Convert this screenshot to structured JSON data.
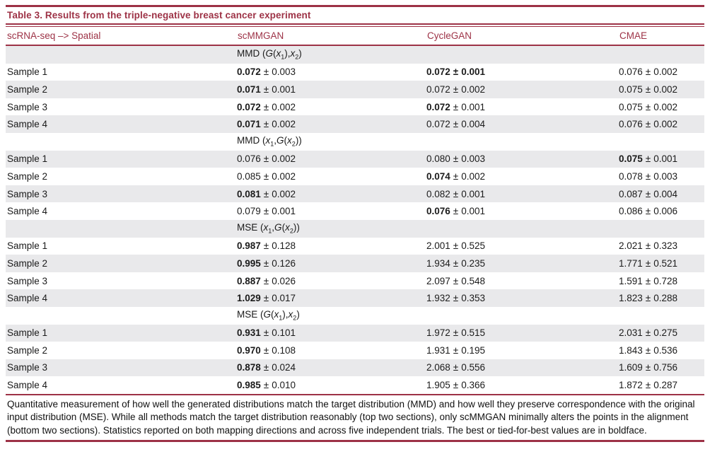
{
  "title": "Table 3. Results from the triple-negative breast cancer experiment",
  "pm": "±",
  "columns": {
    "label": "scRNA-seq –> Spatial",
    "scmmgan": "scMMGAN",
    "cyclegan": "CycleGAN",
    "cmae": "CMAE"
  },
  "sections": [
    {
      "metric": "MMD (G(x_1),x_2)",
      "rows": [
        {
          "label": "Sample 1",
          "scmmgan": {
            "value": "0.072",
            "err": "0.003",
            "bold": "value"
          },
          "cyclegan": {
            "value": "0.072",
            "err": "0.001",
            "bold": "all"
          },
          "cmae": {
            "value": "0.076",
            "err": "0.002",
            "bold": "none"
          }
        },
        {
          "label": "Sample 2",
          "scmmgan": {
            "value": "0.071",
            "err": "0.001",
            "bold": "value"
          },
          "cyclegan": {
            "value": "0.072",
            "err": "0.002",
            "bold": "none"
          },
          "cmae": {
            "value": "0.075",
            "err": "0.002",
            "bold": "none"
          }
        },
        {
          "label": "Sample 3",
          "scmmgan": {
            "value": "0.072",
            "err": "0.002",
            "bold": "value"
          },
          "cyclegan": {
            "value": "0.072",
            "err": "0.001",
            "bold": "value"
          },
          "cmae": {
            "value": "0.075",
            "err": "0.002",
            "bold": "none"
          }
        },
        {
          "label": "Sample 4",
          "scmmgan": {
            "value": "0.071",
            "err": "0.002",
            "bold": "value"
          },
          "cyclegan": {
            "value": "0.072",
            "err": "0.004",
            "bold": "none"
          },
          "cmae": {
            "value": "0.076",
            "err": "0.002",
            "bold": "none"
          }
        }
      ]
    },
    {
      "metric": "MMD (x_1,G(x_2))",
      "rows": [
        {
          "label": "Sample 1",
          "scmmgan": {
            "value": "0.076",
            "err": "0.002",
            "bold": "none"
          },
          "cyclegan": {
            "value": "0.080",
            "err": "0.003",
            "bold": "none"
          },
          "cmae": {
            "value": "0.075",
            "err": "0.001",
            "bold": "value"
          }
        },
        {
          "label": "Sample 2",
          "scmmgan": {
            "value": "0.085",
            "err": "0.002",
            "bold": "none"
          },
          "cyclegan": {
            "value": "0.074",
            "err": "0.002",
            "bold": "value"
          },
          "cmae": {
            "value": "0.078",
            "err": "0.003",
            "bold": "none"
          }
        },
        {
          "label": "Sample 3",
          "scmmgan": {
            "value": "0.081",
            "err": "0.002",
            "bold": "value"
          },
          "cyclegan": {
            "value": "0.082",
            "err": "0.001",
            "bold": "none"
          },
          "cmae": {
            "value": "0.087",
            "err": "0.004",
            "bold": "none"
          }
        },
        {
          "label": "Sample 4",
          "scmmgan": {
            "value": "0.079",
            "err": "0.001",
            "bold": "none"
          },
          "cyclegan": {
            "value": "0.076",
            "err": "0.001",
            "bold": "value"
          },
          "cmae": {
            "value": "0.086",
            "err": "0.006",
            "bold": "none"
          }
        }
      ]
    },
    {
      "metric": "MSE (x_1,G(x_2))",
      "rows": [
        {
          "label": "Sample 1",
          "scmmgan": {
            "value": "0.987",
            "err": "0.128",
            "bold": "value"
          },
          "cyclegan": {
            "value": "2.001",
            "err": "0.525",
            "bold": "none"
          },
          "cmae": {
            "value": "2.021",
            "err": "0.323",
            "bold": "none"
          }
        },
        {
          "label": "Sample 2",
          "scmmgan": {
            "value": "0.995",
            "err": "0.126",
            "bold": "value"
          },
          "cyclegan": {
            "value": "1.934",
            "err": "0.235",
            "bold": "none"
          },
          "cmae": {
            "value": "1.771",
            "err": "0.521",
            "bold": "none"
          }
        },
        {
          "label": "Sample 3",
          "scmmgan": {
            "value": "0.887",
            "err": "0.026",
            "bold": "value"
          },
          "cyclegan": {
            "value": "2.097",
            "err": "0.548",
            "bold": "none"
          },
          "cmae": {
            "value": "1.591",
            "err": "0.728",
            "bold": "none"
          }
        },
        {
          "label": "Sample 4",
          "scmmgan": {
            "value": "1.029",
            "err": "0.017",
            "bold": "value"
          },
          "cyclegan": {
            "value": "1.932",
            "err": "0.353",
            "bold": "none"
          },
          "cmae": {
            "value": "1.823",
            "err": "0.288",
            "bold": "none"
          }
        }
      ]
    },
    {
      "metric": "MSE (G(x_1),x_2)",
      "rows": [
        {
          "label": "Sample 1",
          "scmmgan": {
            "value": "0.931",
            "err": "0.101",
            "bold": "value"
          },
          "cyclegan": {
            "value": "1.972",
            "err": "0.515",
            "bold": "none"
          },
          "cmae": {
            "value": "2.031",
            "err": "0.275",
            "bold": "none"
          }
        },
        {
          "label": "Sample 2",
          "scmmgan": {
            "value": "0.970",
            "err": "0.108",
            "bold": "value"
          },
          "cyclegan": {
            "value": "1.931",
            "err": "0.195",
            "bold": "none"
          },
          "cmae": {
            "value": "1.843",
            "err": "0.536",
            "bold": "none"
          }
        },
        {
          "label": "Sample 3",
          "scmmgan": {
            "value": "0.878",
            "err": "0.024",
            "bold": "value"
          },
          "cyclegan": {
            "value": "2.068",
            "err": "0.556",
            "bold": "none"
          },
          "cmae": {
            "value": "1.609",
            "err": "0.756",
            "bold": "none"
          }
        },
        {
          "label": "Sample 4",
          "scmmgan": {
            "value": "0.985",
            "err": "0.010",
            "bold": "value"
          },
          "cyclegan": {
            "value": "1.905",
            "err": "0.366",
            "bold": "none"
          },
          "cmae": {
            "value": "1.872",
            "err": "0.287",
            "bold": "none"
          }
        }
      ]
    }
  ],
  "caption": "Quantitative measurement of how well the generated distributions match the target distribution (MMD) and how well they preserve correspondence with the original input distribution (MSE). While all methods match the target distribution reasonably (top two sections), only scMMGAN minimally alters the points in the alignment (bottom two sections). Statistics reported on both mapping directions and across five independent trials. The best or tied-for-best values are in boldface.",
  "colors": {
    "accent": "#9d3246",
    "stripe": "#e9e9eb"
  }
}
